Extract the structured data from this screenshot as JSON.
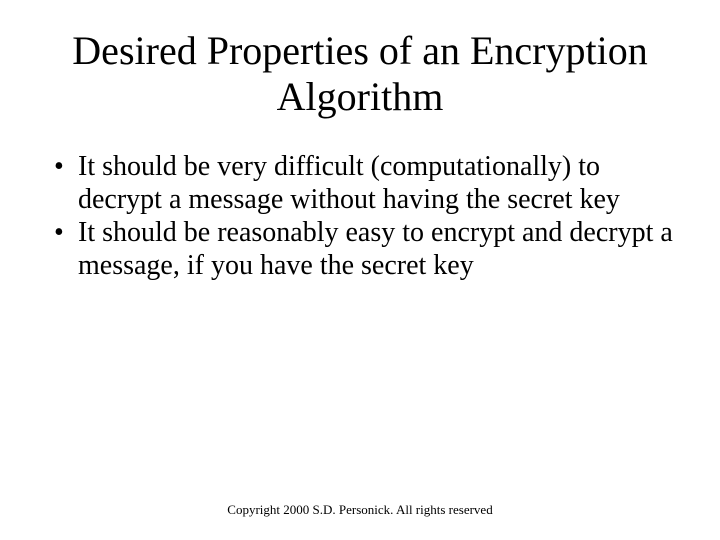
{
  "slide": {
    "title": "Desired Properties of an Encryption Algorithm",
    "title_fontsize": 40,
    "title_color": "#000000",
    "bullets": [
      "It should be very difficult (computationally) to decrypt a message without having the secret key",
      "It should be reasonably easy to encrypt and decrypt a message, if you have the secret key"
    ],
    "bullet_fontsize": 28,
    "bullet_color": "#000000",
    "footer": "Copyright 2000 S.D. Personick. All rights reserved",
    "footer_fontsize": 13,
    "footer_color": "#000000",
    "background_color": "#ffffff"
  }
}
